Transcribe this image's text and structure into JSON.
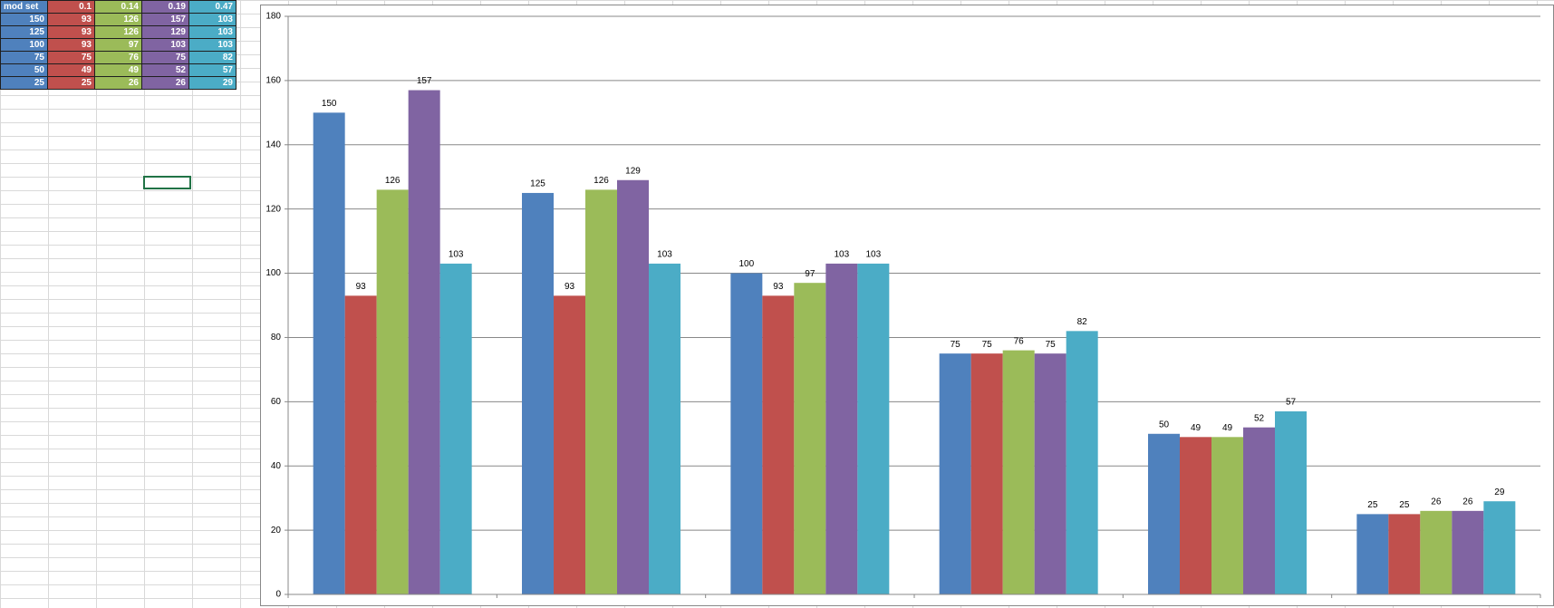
{
  "chart_data": {
    "type": "bar",
    "categories": [
      null,
      null,
      null,
      null,
      null,
      null
    ],
    "series": [
      {
        "name": "mod set",
        "color": "#4f81bd",
        "values": [
          150,
          125,
          100,
          75,
          50,
          25
        ]
      },
      {
        "name": "0.1",
        "color": "#c0504d",
        "values": [
          93,
          93,
          93,
          75,
          49,
          25
        ]
      },
      {
        "name": "0.14",
        "color": "#9bbb59",
        "values": [
          126,
          126,
          97,
          76,
          49,
          26
        ]
      },
      {
        "name": "0.19",
        "color": "#8064a2",
        "values": [
          157,
          129,
          103,
          75,
          52,
          26
        ]
      },
      {
        "name": "0.47",
        "color": "#4bacc6",
        "values": [
          103,
          103,
          103,
          82,
          57,
          29
        ]
      }
    ],
    "ylim": [
      0,
      180
    ],
    "yticks": [
      0,
      20,
      40,
      60,
      80,
      100,
      120,
      140,
      160,
      180
    ],
    "grid": true
  }
}
